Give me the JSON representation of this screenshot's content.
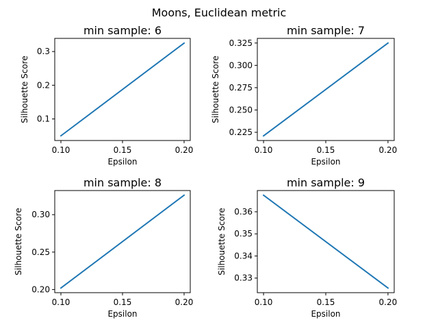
{
  "figure": {
    "suptitle": "Moons, Euclidean metric",
    "line_color": "#1f77b4"
  },
  "chart_data": [
    {
      "type": "line",
      "title": "min sample: 6",
      "xlabel": "Epsilon",
      "ylabel": "Silhouette Score",
      "x": [
        0.1,
        0.2
      ],
      "y": [
        0.05,
        0.325
      ],
      "xlim": [
        0.095,
        0.205
      ],
      "ylim": [
        0.036,
        0.339
      ],
      "xticks": [
        0.1,
        0.15,
        0.2
      ],
      "xtick_labels": [
        "0.10",
        "0.15",
        "0.20"
      ],
      "yticks": [
        0.1,
        0.2,
        0.3
      ],
      "ytick_labels": [
        "0.1",
        "0.2",
        "0.3"
      ],
      "grid": false
    },
    {
      "type": "line",
      "title": "min sample: 7",
      "xlabel": "Epsilon",
      "ylabel": "Silhouette Score",
      "x": [
        0.1,
        0.2
      ],
      "y": [
        0.221,
        0.325
      ],
      "xlim": [
        0.095,
        0.205
      ],
      "ylim": [
        0.2158,
        0.3302
      ],
      "xticks": [
        0.1,
        0.15,
        0.2
      ],
      "xtick_labels": [
        "0.10",
        "0.15",
        "0.20"
      ],
      "yticks": [
        0.225,
        0.25,
        0.275,
        0.3,
        0.325
      ],
      "ytick_labels": [
        "0.225",
        "0.250",
        "0.275",
        "0.300",
        "0.325"
      ],
      "grid": false
    },
    {
      "type": "line",
      "title": "min sample: 8",
      "xlabel": "Epsilon",
      "ylabel": "Silhouette Score",
      "x": [
        0.1,
        0.2
      ],
      "y": [
        0.202,
        0.326
      ],
      "xlim": [
        0.095,
        0.205
      ],
      "ylim": [
        0.1958,
        0.3322
      ],
      "xticks": [
        0.1,
        0.15,
        0.2
      ],
      "xtick_labels": [
        "0.10",
        "0.15",
        "0.20"
      ],
      "yticks": [
        0.2,
        0.25,
        0.3
      ],
      "ytick_labels": [
        "0.20",
        "0.25",
        "0.30"
      ],
      "grid": false
    },
    {
      "type": "line",
      "title": "min sample: 9",
      "xlabel": "Epsilon",
      "ylabel": "Silhouette Score",
      "x": [
        0.1,
        0.2
      ],
      "y": [
        0.3675,
        0.3255
      ],
      "xlim": [
        0.095,
        0.205
      ],
      "ylim": [
        0.3234,
        0.3696
      ],
      "xticks": [
        0.1,
        0.15,
        0.2
      ],
      "xtick_labels": [
        "0.10",
        "0.15",
        "0.20"
      ],
      "yticks": [
        0.33,
        0.34,
        0.35,
        0.36
      ],
      "ytick_labels": [
        "0.33",
        "0.34",
        "0.35",
        "0.36"
      ],
      "grid": false
    }
  ]
}
